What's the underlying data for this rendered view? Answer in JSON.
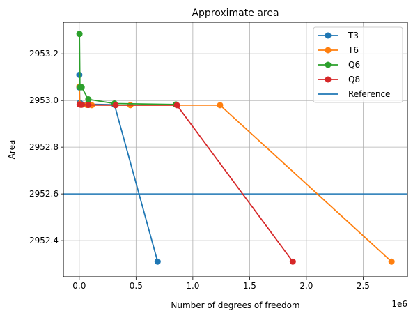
{
  "chart_data": {
    "type": "line",
    "title": "Approximate area",
    "xlabel": "Number of degrees of freedom",
    "ylabel": "Area",
    "x_offset_label": "1e6",
    "xlim": [
      -0.14,
      2.89
    ],
    "ylim": [
      2952.245,
      2953.335
    ],
    "xticks": [
      0.0,
      0.5,
      1.0,
      1.5,
      2.0,
      2.5
    ],
    "xtick_labels": [
      "0.0",
      "0.5",
      "1.0",
      "1.5",
      "2.0",
      "2.5"
    ],
    "yticks": [
      2952.4,
      2952.6,
      2952.8,
      2953.0,
      2953.2
    ],
    "ytick_labels": [
      "2952.4",
      "2952.6",
      "2952.8",
      "2953.0",
      "2953.2"
    ],
    "grid": true,
    "legend_position": "top-right",
    "series": [
      {
        "name": "T3",
        "color": "#1f77b4",
        "x": [
          0.0004,
          0.0014,
          0.0048,
          0.0175,
          0.0685,
          0.31,
          0.69
        ],
        "y": [
          2953.11,
          2953.056,
          2952.99,
          2952.985,
          2952.984,
          2952.982,
          2952.31
        ]
      },
      {
        "name": "T6",
        "color": "#ff7f0e",
        "x": [
          0.0012,
          0.0044,
          0.0171,
          0.0678,
          0.11,
          0.45,
          1.24,
          2.75
        ],
        "y": [
          2953.06,
          2952.985,
          2952.982,
          2952.981,
          2952.98,
          2952.98,
          2952.98,
          2952.31
        ]
      },
      {
        "name": "Q6",
        "color": "#2ca02c",
        "x": [
          0.0017,
          0.006,
          0.0207,
          0.08,
          0.31,
          0.85
        ],
        "y": [
          2953.285,
          2953.057,
          2953.057,
          2953.005,
          2952.987,
          2952.983
        ]
      },
      {
        "name": "Q8",
        "color": "#d62728",
        "x": [
          0.003,
          0.0115,
          0.023,
          0.08,
          0.32,
          0.86,
          1.88
        ],
        "y": [
          2952.983,
          2952.982,
          2952.982,
          2952.981,
          2952.98,
          2952.98,
          2952.31
        ]
      }
    ],
    "reference": {
      "name": "Reference",
      "color": "#1f77b4",
      "y": 2952.6
    }
  }
}
